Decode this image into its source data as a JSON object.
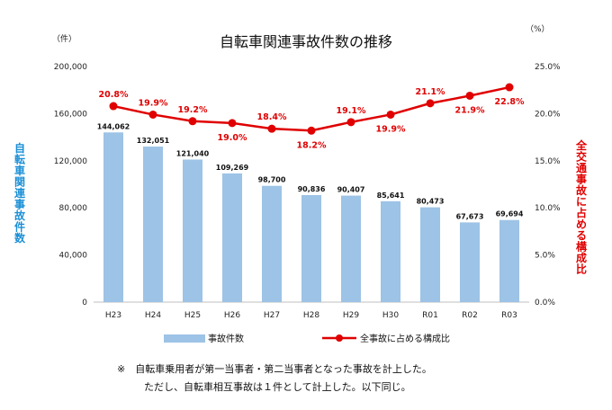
{
  "chart_data": {
    "type": "bar+line",
    "title": "自転車関連事故件数の推移",
    "categories": [
      "H23",
      "H24",
      "H25",
      "H26",
      "H27",
      "H28",
      "H29",
      "H30",
      "R01",
      "R02",
      "R03"
    ],
    "series": [
      {
        "name": "事故件数",
        "type": "bar",
        "axis": "left",
        "color": "#9dc3e6",
        "values": [
          144062,
          132051,
          121040,
          109269,
          98700,
          90836,
          90407,
          85641,
          80473,
          67673,
          69694
        ],
        "labels": [
          "144,062",
          "132,051",
          "121,040",
          "109,269",
          "98,700",
          "90,836",
          "90,407",
          "85,641",
          "80,473",
          "67,673",
          "69,694"
        ]
      },
      {
        "name": "全事故に占める構成比",
        "type": "line",
        "axis": "right",
        "color": "#e00000",
        "values": [
          20.8,
          19.9,
          19.2,
          19.0,
          18.4,
          18.2,
          19.1,
          19.9,
          21.1,
          21.9,
          22.8
        ],
        "labels": [
          "20.8%",
          "19.9%",
          "19.2%",
          "19.0%",
          "18.4%",
          "18.2%",
          "19.1%",
          "19.9%",
          "21.1%",
          "21.9%",
          "22.8%"
        ],
        "label_positions": [
          "above",
          "above",
          "above",
          "below",
          "above",
          "below",
          "above",
          "below",
          "above",
          "below",
          "below"
        ]
      }
    ],
    "y_left": {
      "label": "自転車関連事故件数",
      "unit": "（件）",
      "min": 0,
      "max": 200000,
      "ticks": [
        "0",
        "40,000",
        "80,000",
        "120,000",
        "160,000",
        "200,000"
      ]
    },
    "y_right": {
      "label": "全交通事故に占める構成比",
      "unit": "（%）",
      "min": 0,
      "max": 25,
      "ticks": [
        "0.0%",
        "5.0%",
        "10.0%",
        "15.0%",
        "20.0%",
        "25.0%"
      ]
    },
    "legend": {
      "placement": "bottom"
    },
    "grid": false
  },
  "note": {
    "line1": "※　自転車乗用者が第一当事者・第二当事者となった事故を計上した。",
    "line2": "ただし、自転車相互事故は１件として計上した。以下同じ。"
  }
}
